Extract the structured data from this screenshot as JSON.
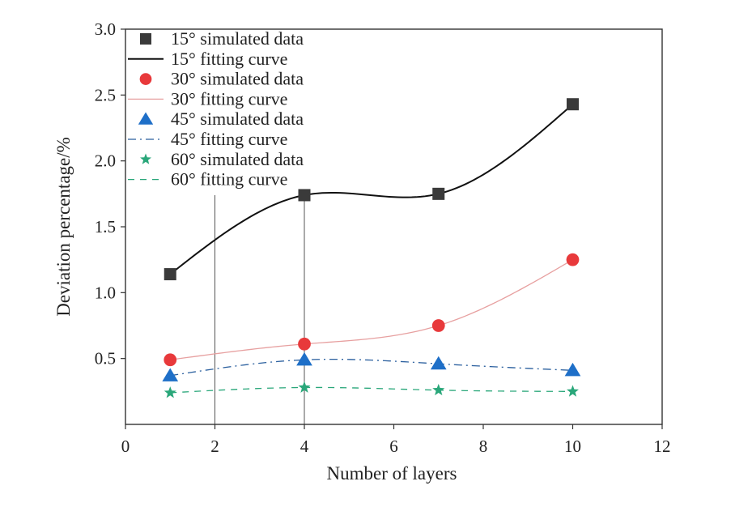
{
  "chart_data": {
    "type": "scatter",
    "xlabel": "Number of layers",
    "ylabel": "Deviation percentage/%",
    "xlim": [
      0,
      12
    ],
    "ylim": [
      0,
      3.0
    ],
    "x_ticks": [
      "0",
      "2",
      "4",
      "6",
      "8",
      "10",
      "12"
    ],
    "y_ticks": [
      "0.5",
      "1.0",
      "1.5",
      "2.0",
      "2.5",
      "3.0"
    ],
    "grid": false,
    "legend_position": "top-left",
    "guide_lines_x": [
      2,
      4
    ],
    "series": [
      {
        "name": "15° simulated data",
        "fit_name": "15° fitting curve",
        "marker": "square",
        "color": "#3a3a3a",
        "fit_color": "#111111",
        "fit_style": "solid",
        "x": [
          1,
          4,
          7,
          10
        ],
        "y": [
          1.14,
          1.74,
          1.75,
          2.43
        ]
      },
      {
        "name": "30° simulated data",
        "fit_name": "30° fitting curve",
        "marker": "circle",
        "color": "#e8393b",
        "fit_color": "#e7a0a0",
        "fit_style": "solid",
        "x": [
          1,
          4,
          7,
          10
        ],
        "y": [
          0.49,
          0.61,
          0.75,
          1.25
        ]
      },
      {
        "name": "45° simulated data",
        "fit_name": "45° fitting curve",
        "marker": "triangle",
        "color": "#1e6fc8",
        "fit_color": "#2a5f9e",
        "fit_style": "dashdot",
        "x": [
          1,
          4,
          7,
          10
        ],
        "y": [
          0.37,
          0.49,
          0.46,
          0.41
        ]
      },
      {
        "name": "60° simulated data",
        "fit_name": "60° fitting curve",
        "marker": "star",
        "color": "#2aa77a",
        "fit_color": "#2aa77a",
        "fit_style": "dashed",
        "x": [
          1,
          4,
          7,
          10
        ],
        "y": [
          0.24,
          0.28,
          0.26,
          0.25
        ]
      }
    ]
  }
}
